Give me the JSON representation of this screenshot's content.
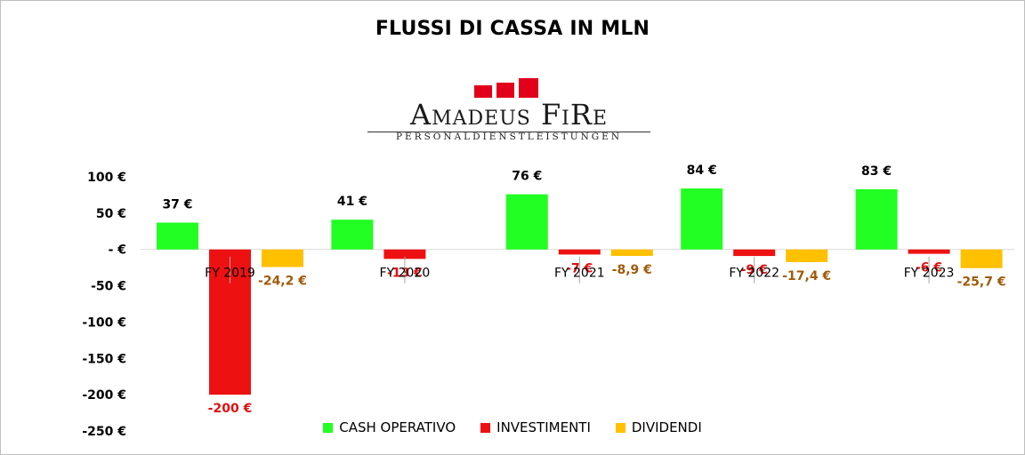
{
  "title": "FLUSSI DI CASSA IN MLN",
  "logo": {
    "name": "Amadeus FiRe",
    "tagline": "PERSONALDIENSTLEISTUNGEN",
    "brand_color": "#e2001a"
  },
  "chart_data": {
    "type": "bar",
    "categories": [
      "FY 2019",
      "FY 2020",
      "FY 2021",
      "FY 2022",
      "FY 2023"
    ],
    "series": [
      {
        "name": "CASH OPERATIVO",
        "color": "#22ff22",
        "label_color": "#000000",
        "values": [
          37,
          41,
          76,
          84,
          83
        ],
        "labels": [
          "37 €",
          "41 €",
          "76 €",
          "84 €",
          "83 €"
        ]
      },
      {
        "name": "INVESTIMENTI",
        "color": "#ee1111",
        "label_color": "#e01010",
        "values": [
          -200,
          -13,
          -7,
          -9,
          -6
        ],
        "labels": [
          "-200 €",
          "-13 €",
          "-7 €",
          "-9 €",
          "-6 €"
        ]
      },
      {
        "name": "DIVIDENDI",
        "color": "#ffc000",
        "label_color": "#a05a0a",
        "values": [
          -24.2,
          null,
          -8.9,
          -17.4,
          -25.7
        ],
        "labels": [
          "-24,2 €",
          "",
          "-8,9 €",
          "-17,4 €",
          "-25,7 €"
        ]
      }
    ],
    "yticks": [
      100,
      50,
      0,
      -50,
      -100,
      -150,
      -200,
      -250
    ],
    "ytick_labels": [
      "100 €",
      "50 €",
      "- €",
      "-50 €",
      "-100 €",
      "-150 €",
      "-200 €",
      "-250 €"
    ],
    "ylim": [
      -250,
      100
    ],
    "grid": false,
    "legend_position": "bottom"
  }
}
